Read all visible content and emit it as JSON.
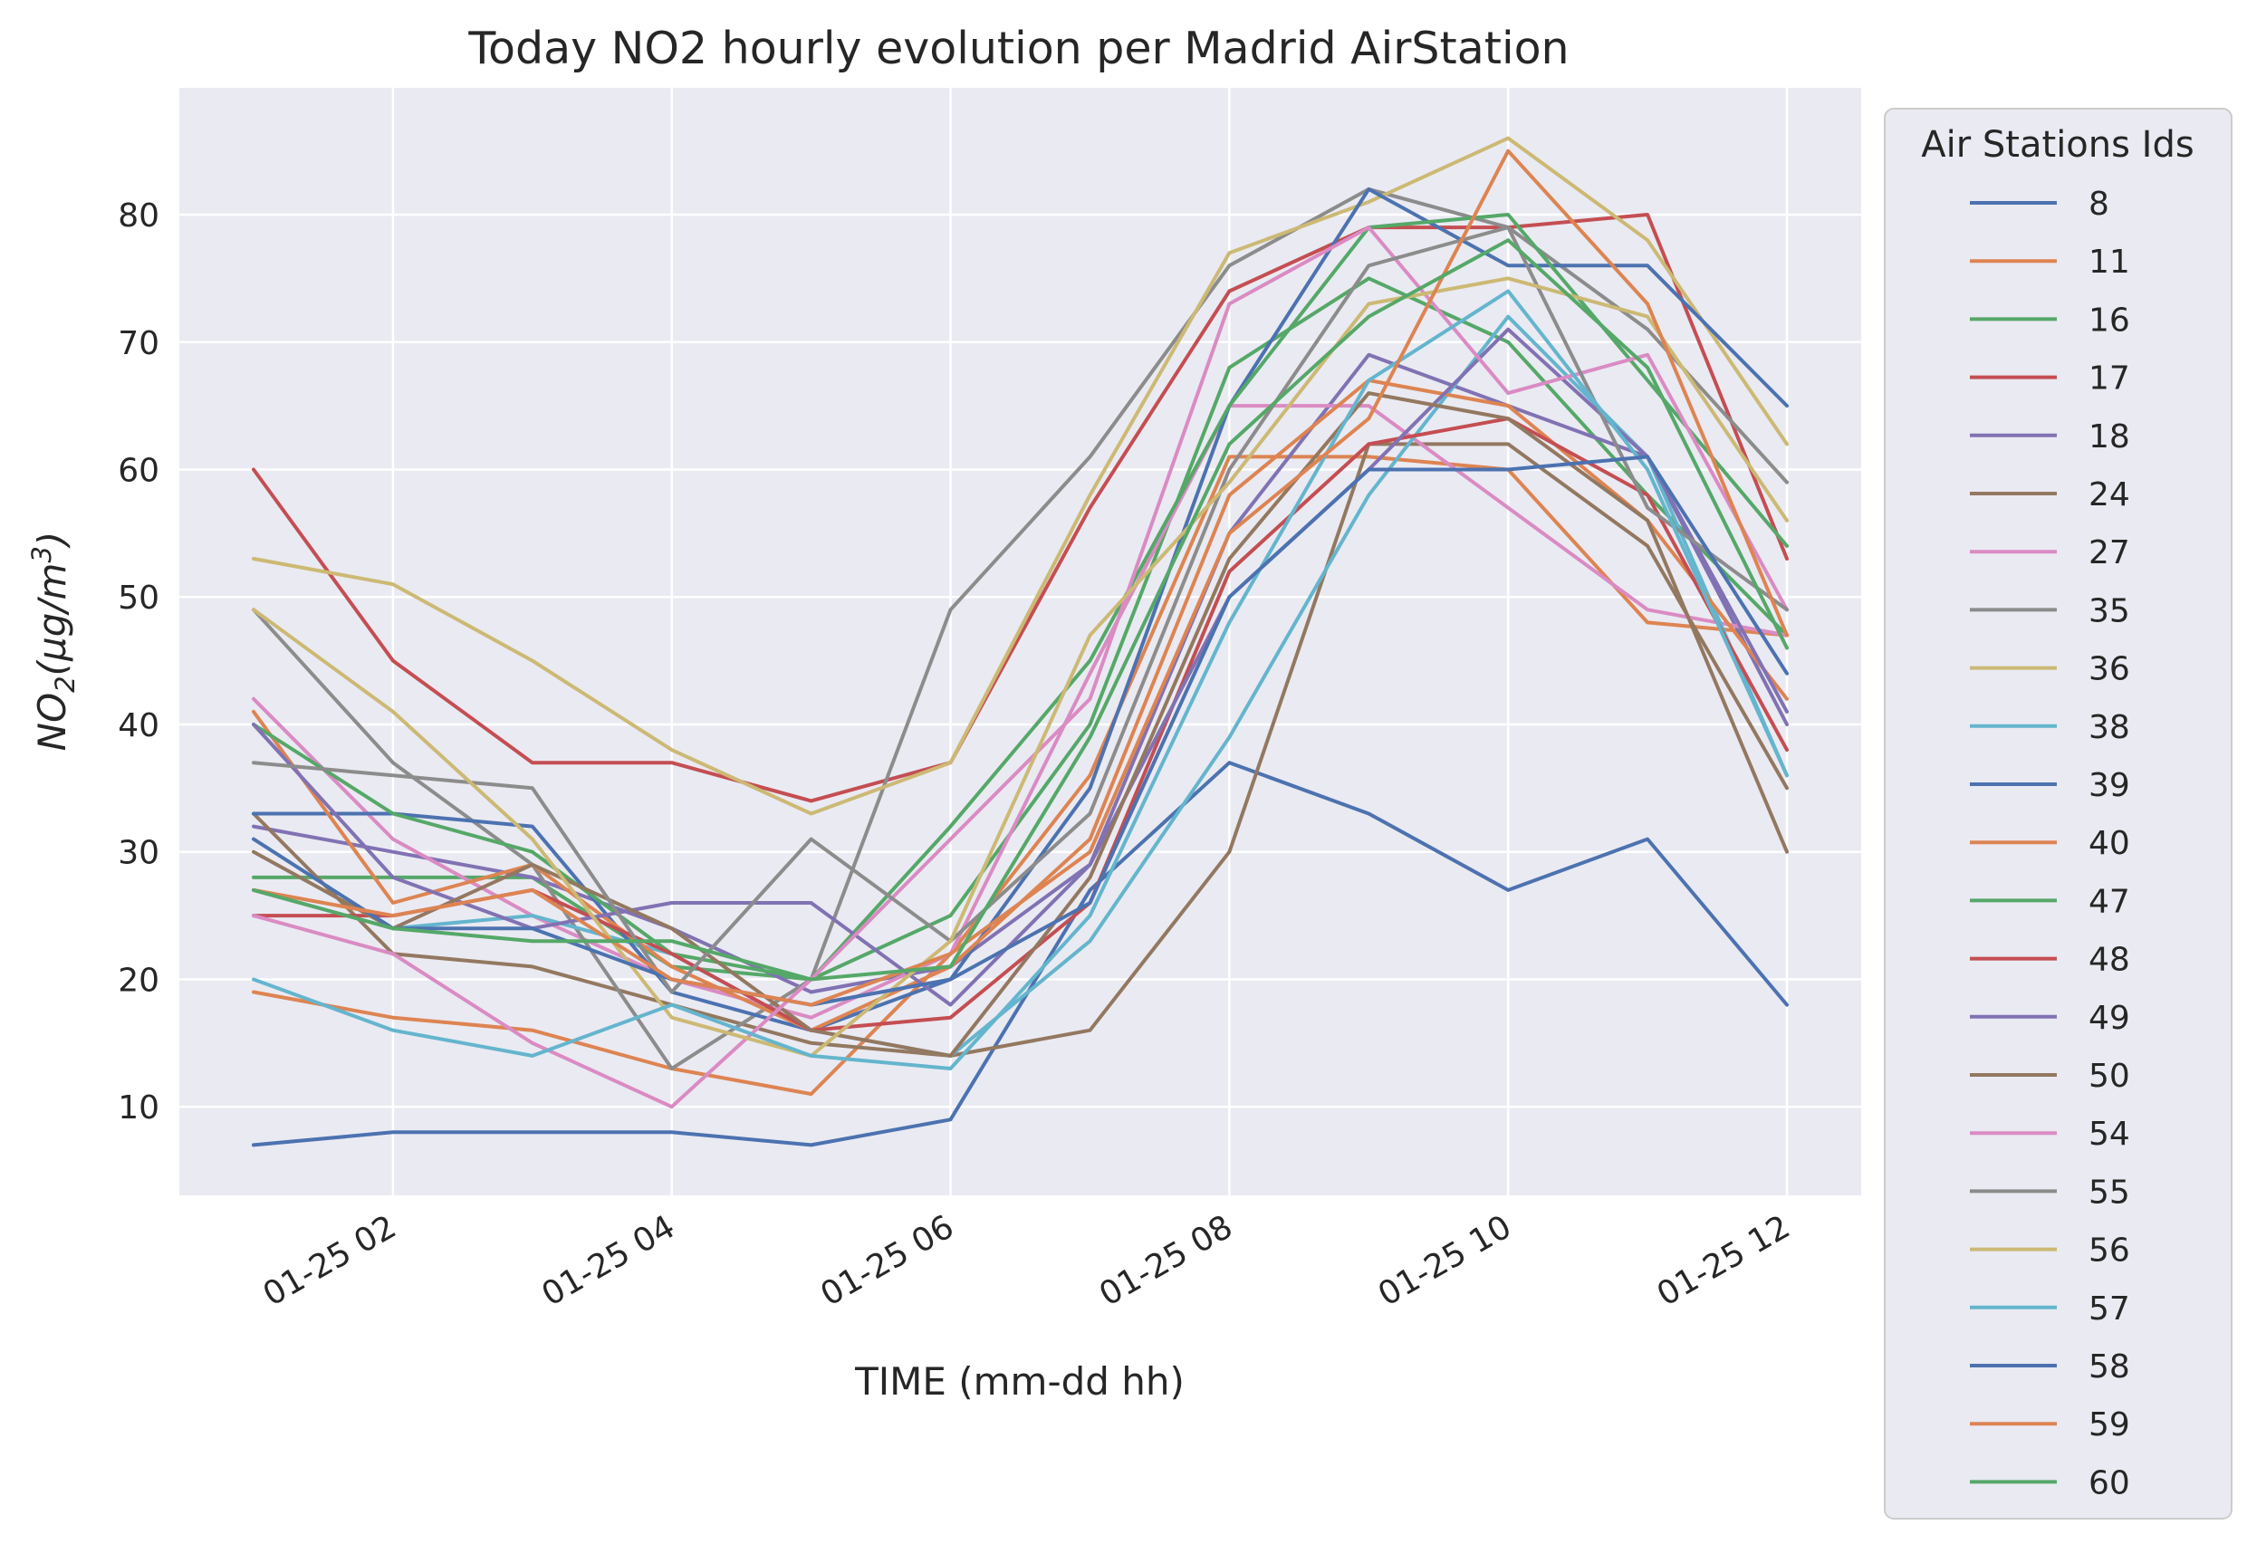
{
  "chart_data": {
    "type": "line",
    "title": "Today NO2 hourly evolution per Madrid AirStation",
    "xlabel": "TIME (mm-dd hh)",
    "ylabel": "NO₂(μg/m³)",
    "ylabel_parts": {
      "base": "NO",
      "sub": "2",
      "mid": "(μg/m",
      "sup": "3",
      "end": ")"
    },
    "x": [
      "01-25 01",
      "01-25 02",
      "01-25 03",
      "01-25 04",
      "01-25 05",
      "01-25 06",
      "01-25 07",
      "01-25 08",
      "01-25 09",
      "01-25 10",
      "01-25 11",
      "01-25 12"
    ],
    "x_ticks": [
      "01-25 02",
      "01-25 04",
      "01-25 06",
      "01-25 08",
      "01-25 10",
      "01-25 12"
    ],
    "y_ticks": [
      10,
      20,
      30,
      40,
      50,
      60,
      70,
      80
    ],
    "ylim": [
      3.05,
      89.95
    ],
    "xlim": [
      "01-25 00:27",
      "01-25 12:33"
    ],
    "grid": true,
    "legend": {
      "title": "Air Stations Ids",
      "position": "outside-right"
    },
    "style": {
      "background": "#eaeaf2",
      "grid_color": "#ffffff"
    },
    "series": [
      {
        "name": "8",
        "color": "#4c72b0",
        "values": [
          7,
          8,
          8,
          8,
          7,
          9,
          27,
          37,
          33,
          27,
          31,
          18
        ]
      },
      {
        "name": "11",
        "color": "#dd8452",
        "values": [
          19,
          17,
          16,
          13,
          11,
          22,
          36,
          61,
          61,
          60,
          48,
          47
        ]
      },
      {
        "name": "16",
        "color": "#55a868",
        "values": [
          28,
          28,
          28,
          21,
          20,
          25,
          40,
          68,
          75,
          70,
          58,
          47
        ]
      },
      {
        "name": "17",
        "color": "#c44e52",
        "values": [
          60,
          45,
          37,
          37,
          34,
          37,
          57,
          74,
          79,
          79,
          80,
          53
        ]
      },
      {
        "name": "18",
        "color": "#8172b3",
        "values": [
          32,
          30,
          28,
          24,
          19,
          21,
          29,
          55,
          69,
          65,
          61,
          40
        ]
      },
      {
        "name": "24",
        "color": "#937860",
        "values": [
          33,
          22,
          21,
          18,
          15,
          14,
          16,
          30,
          62,
          62,
          54,
          35
        ]
      },
      {
        "name": "27",
        "color": "#da8bc3",
        "values": [
          42,
          31,
          25,
          20,
          17,
          22,
          44,
          65,
          65,
          57,
          49,
          47
        ]
      },
      {
        "name": "35",
        "color": "#8c8c8c",
        "values": [
          49,
          37,
          29,
          13,
          20,
          49,
          61,
          76,
          82,
          79,
          71,
          59
        ]
      },
      {
        "name": "36",
        "color": "#ccb974",
        "values": [
          53,
          51,
          45,
          38,
          33,
          37,
          58,
          77,
          81,
          86,
          78,
          62
        ]
      },
      {
        "name": "38",
        "color": "#64b5cd",
        "values": [
          27,
          24,
          25,
          22,
          16,
          14,
          23,
          39,
          58,
          72,
          61,
          36
        ]
      },
      {
        "name": "39",
        "color": "#4c72b0",
        "values": [
          33,
          33,
          32,
          19,
          16,
          20,
          35,
          65,
          82,
          76,
          76,
          65
        ]
      },
      {
        "name": "40",
        "color": "#dd8452",
        "values": [
          41,
          26,
          29,
          21,
          16,
          21,
          31,
          58,
          67,
          65,
          56,
          42
        ]
      },
      {
        "name": "47",
        "color": "#55a868",
        "values": [
          40,
          33,
          30,
          22,
          20,
          32,
          45,
          65,
          79,
          80,
          67,
          54
        ]
      },
      {
        "name": "48",
        "color": "#c44e52",
        "values": [
          25,
          25,
          27,
          22,
          16,
          17,
          26,
          52,
          62,
          64,
          58,
          38
        ]
      },
      {
        "name": "49",
        "color": "#8172b3",
        "values": [
          40,
          28,
          24,
          26,
          26,
          18,
          29,
          50,
          60,
          71,
          61,
          41
        ]
      },
      {
        "name": "50",
        "color": "#937860",
        "values": [
          30,
          24,
          29,
          24,
          16,
          14,
          28,
          53,
          66,
          64,
          56,
          30
        ]
      },
      {
        "name": "54",
        "color": "#da8bc3",
        "values": [
          25,
          22,
          15,
          10,
          20,
          31,
          42,
          73,
          79,
          66,
          69,
          49
        ]
      },
      {
        "name": "55",
        "color": "#8c8c8c",
        "values": [
          37,
          36,
          35,
          19,
          31,
          23,
          33,
          60,
          76,
          79,
          57,
          49
        ]
      },
      {
        "name": "56",
        "color": "#ccb974",
        "values": [
          49,
          41,
          31,
          17,
          14,
          23,
          47,
          59,
          73,
          75,
          72,
          56
        ]
      },
      {
        "name": "57",
        "color": "#64b5cd",
        "values": [
          20,
          16,
          14,
          18,
          14,
          13,
          25,
          48,
          67,
          74,
          60,
          36
        ]
      },
      {
        "name": "58",
        "color": "#4c72b0",
        "values": [
          31,
          24,
          24,
          20,
          18,
          20,
          26,
          50,
          60,
          60,
          61,
          44
        ]
      },
      {
        "name": "59",
        "color": "#dd8452",
        "values": [
          27,
          25,
          27,
          20,
          18,
          22,
          30,
          55,
          64,
          85,
          73,
          47
        ]
      },
      {
        "name": "60",
        "color": "#55a868",
        "values": [
          27,
          24,
          23,
          23,
          20,
          21,
          39,
          62,
          72,
          78,
          68,
          46
        ]
      }
    ]
  }
}
